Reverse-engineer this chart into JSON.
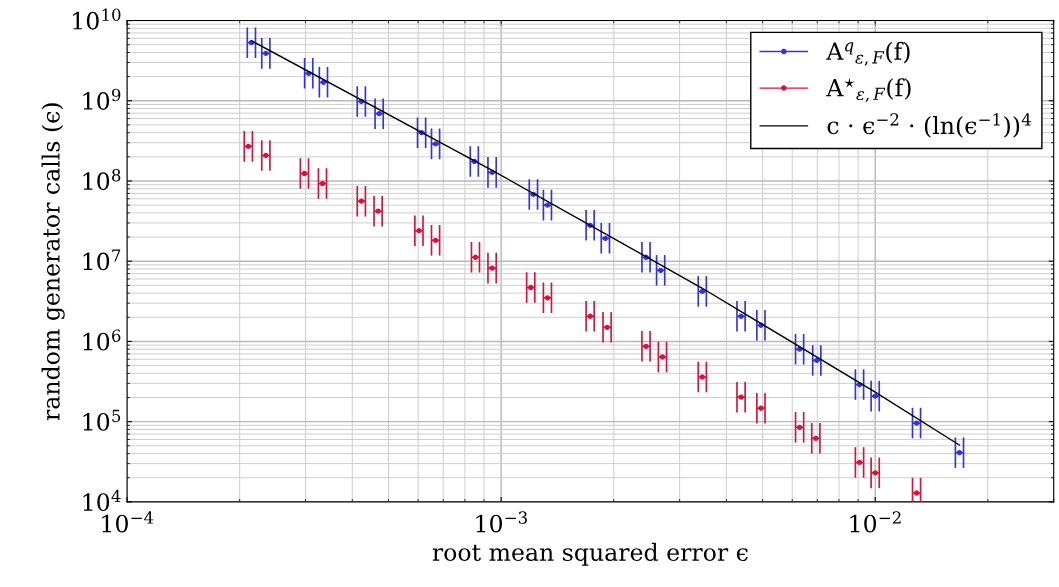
{
  "chart_data": {
    "type": "scatter",
    "xlabel": "root mean squared error ϵ",
    "ylabel": "random generator calls (ϵ)",
    "log": "xy",
    "grid": true,
    "legend": "top right",
    "marker": "circle",
    "xlim": [
      0.0001,
      0.03
    ],
    "xticks": [
      {
        "value": 0.0001,
        "label": "10$^{−4}$"
      },
      {
        "value": 0.001,
        "label": "10$^{−3}$"
      },
      {
        "value": 0.01,
        "label": "10$^{−2}$"
      }
    ],
    "ylim": [
      10000,
      10000000000
    ],
    "yticks": [
      {
        "value": 10000,
        "label": "10$^{4}$"
      },
      {
        "value": 100000,
        "label": "10$^{5}$"
      },
      {
        "value": 1000000,
        "label": "10$^{6}$"
      },
      {
        "value": 10000000,
        "label": "10$^{7}$"
      },
      {
        "value": 100000000,
        "label": "10$^{8}$"
      },
      {
        "value": 1000000000,
        "label": "10$^{9}$"
      },
      {
        "value": 10000000000,
        "label": "10$^{10}$"
      }
    ],
    "series": [
      {
        "name": "A$^{q}$$_{ε,F}$(f)",
        "color": "#3535d6",
        "x": [
          0.000215,
          0.000235,
          0.000306,
          0.000335,
          0.000423,
          0.000472,
          0.000613,
          0.000668,
          0.000848,
          0.000946,
          0.00122,
          0.00133,
          0.00173,
          0.0019,
          0.00244,
          0.00267,
          0.00345,
          0.00438,
          0.00495,
          0.00628,
          0.00698,
          0.00908,
          0.01,
          0.0129,
          0.0168
        ],
        "values": [
          5300000000.0,
          3900000000.0,
          2200000000.0,
          1700000000.0,
          980000000.0,
          690000000.0,
          400000000.0,
          290000000.0,
          175000000.0,
          128000000.0,
          68000000.0,
          50000000.0,
          28000000.0,
          19300000.0,
          11200000.0,
          7700000.0,
          4200000.0,
          2060000.0,
          1590000.0,
          800000.0,
          580000.0,
          290000.0,
          208000.0,
          96000.0,
          41000.0
        ],
        "xerrors": [
          5.4e-06,
          5.9e-06,
          7.7e-06,
          8.4e-06,
          1.06e-05,
          1.18e-05,
          1.53e-05,
          1.67e-05,
          2.1e-05,
          2.4e-05,
          3.1e-05,
          3.3e-05,
          4.3e-05,
          4.8e-05,
          6.1e-05,
          6.7e-05,
          8.6e-05,
          0.00011,
          0.000124,
          0.000157,
          0.000175,
          0.00023,
          0.00025,
          0.00032,
          0.00042
        ]
      },
      {
        "name": "A$^{⋆}$$_{ε,F}$(f)",
        "color": "#d4153b",
        "x": [
          0.000211,
          0.000235,
          0.000298,
          0.000333,
          0.000423,
          0.000469,
          0.000603,
          0.000668,
          0.000854,
          0.000946,
          0.0012,
          0.00133,
          0.00173,
          0.00192,
          0.00244,
          0.0027,
          0.00345,
          0.00438,
          0.00495,
          0.00628,
          0.00694,
          0.00908,
          0.01,
          0.0129
        ],
        "values": [
          270000000.0,
          208000000.0,
          124000000.0,
          93000000.0,
          56000000.0,
          42000000.0,
          24000000.0,
          18200000.0,
          11200000.0,
          8200000.0,
          4700000.0,
          3500000.0,
          2060000.0,
          1500000.0,
          870000.0,
          640000.0,
          360000.0,
          202000.0,
          147000.0,
          85000.0,
          62000.0,
          31000.0,
          23000.0,
          12900.0
        ],
        "xerrors": [
          5.3e-06,
          5.9e-06,
          7.5e-06,
          8.3e-06,
          1.06e-05,
          1.17e-05,
          1.51e-05,
          1.67e-05,
          2.1e-05,
          2.4e-05,
          3e-05,
          3.3e-05,
          4.3e-05,
          4.8e-05,
          6.1e-05,
          6.8e-05,
          8.6e-05,
          0.00011,
          0.000124,
          0.000157,
          0.000174,
          0.00023,
          0.00025,
          0.00032
        ]
      },
      {
        "name": "c · ϵ$^{−2}$ · (ln(ϵ$^{−1}$))$^{4}$",
        "color": "#000000",
        "type": "line",
        "marker": "none",
        "x": [
          0.000215,
          0.000946,
          0.00345,
          0.01,
          0.0168
        ],
        "values": [
          5600000000.0,
          136000000.0,
          4600000.0,
          233000.0,
          51000.0
        ]
      }
    ]
  }
}
